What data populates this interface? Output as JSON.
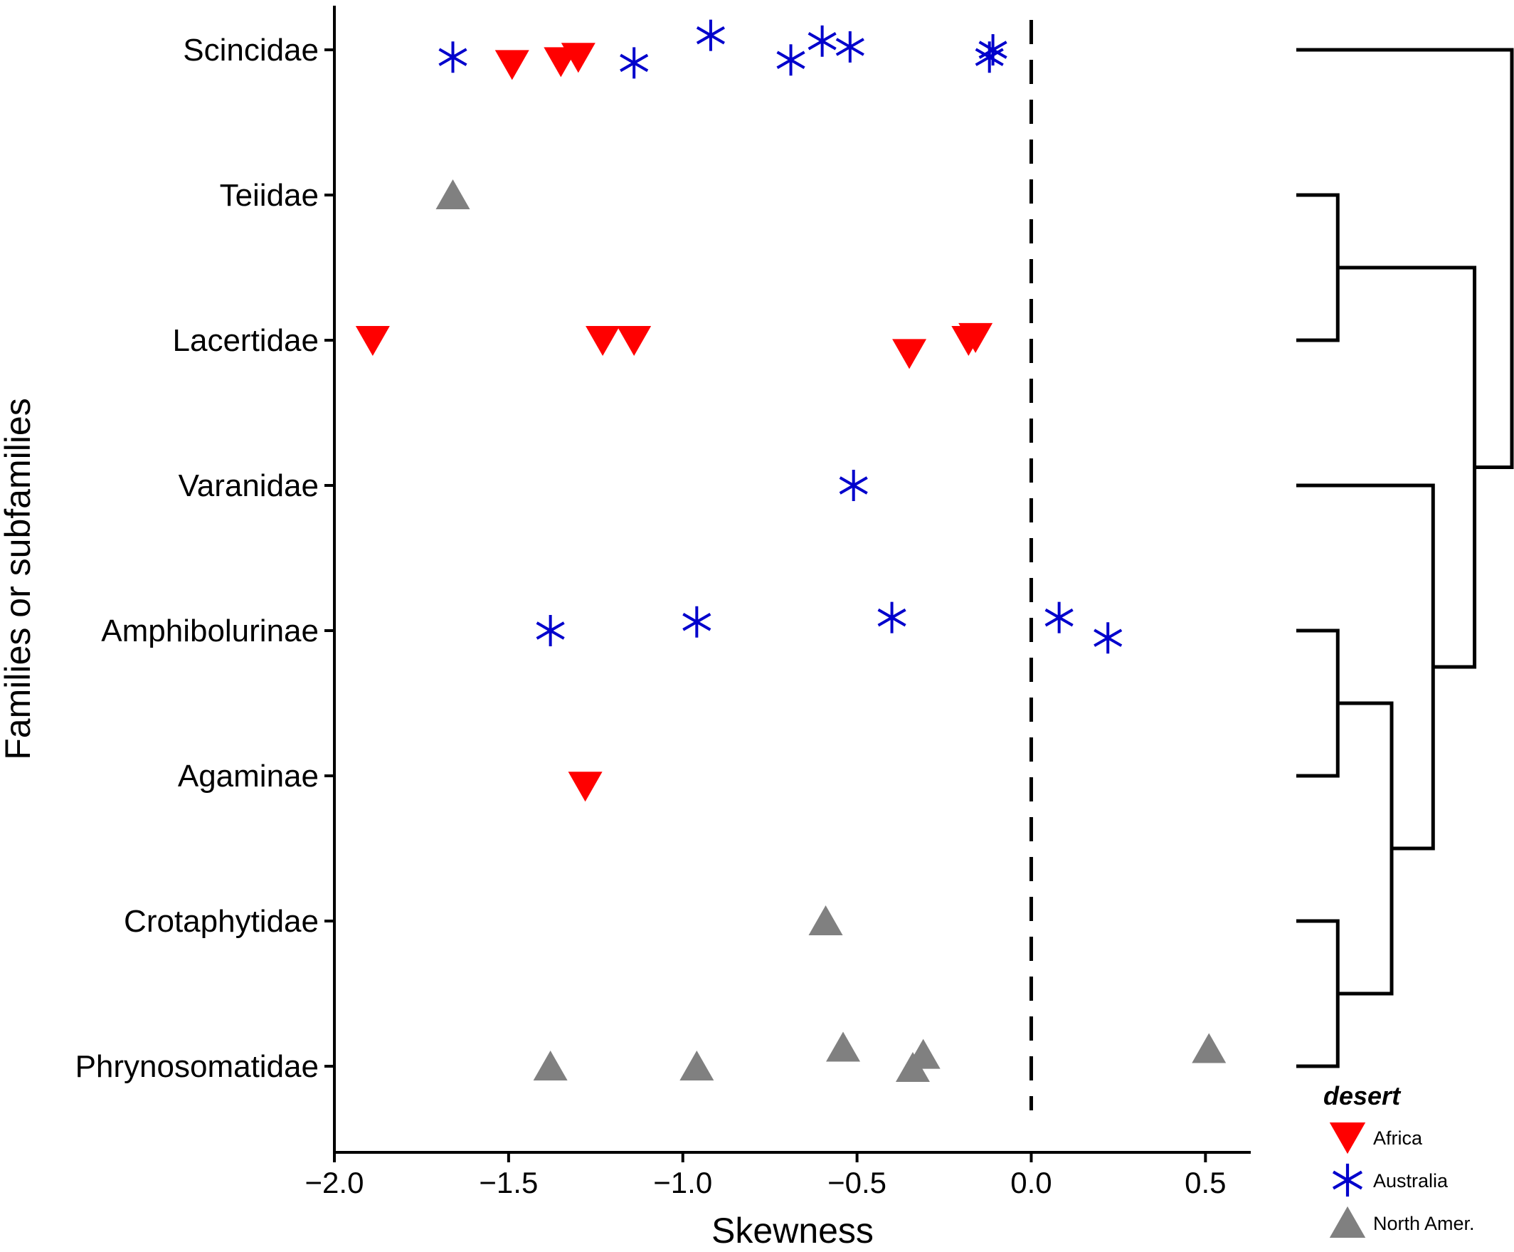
{
  "chart_data": {
    "type": "scatter",
    "xlabel": "Skewness",
    "ylabel": "Families or subfamilies",
    "xlim": [
      -2.0,
      0.63
    ],
    "x_ticks": [
      "−2.0",
      "−1.5",
      "−1.0",
      "−0.5",
      "0.0",
      "0.5"
    ],
    "x_tick_values": [
      -2.0,
      -1.5,
      -1.0,
      -0.5,
      0.0,
      0.5
    ],
    "categories": [
      "Scincidae",
      "Teiidae",
      "Lacertidae",
      "Varanidae",
      "Amphibolurinae",
      "Agaminae",
      "Crotaphytidae",
      "Phrynosomatidae"
    ],
    "reference_line": {
      "x": 0.0,
      "style": "dashed"
    },
    "legend": {
      "title": "desert",
      "position": "bottom-right"
    },
    "series": [
      {
        "name": "Africa",
        "marker": "triangle-down",
        "color": "#ff0000",
        "points": [
          {
            "category": "Scincidae",
            "x": -1.49,
            "jitter": -0.1
          },
          {
            "category": "Scincidae",
            "x": -1.35,
            "jitter": -0.08
          },
          {
            "category": "Scincidae",
            "x": -1.3,
            "jitter": -0.05
          },
          {
            "category": "Lacertidae",
            "x": -1.89,
            "jitter": 0.0
          },
          {
            "category": "Lacertidae",
            "x": -1.23,
            "jitter": 0.0
          },
          {
            "category": "Lacertidae",
            "x": -1.14,
            "jitter": 0.0
          },
          {
            "category": "Lacertidae",
            "x": -0.35,
            "jitter": -0.09
          },
          {
            "category": "Lacertidae",
            "x": -0.18,
            "jitter": 0.0
          },
          {
            "category": "Lacertidae",
            "x": -0.16,
            "jitter": 0.02
          },
          {
            "category": "Agaminae",
            "x": -1.28,
            "jitter": -0.07
          }
        ]
      },
      {
        "name": "Australia",
        "marker": "asterisk",
        "color": "#0000cc",
        "points": [
          {
            "category": "Scincidae",
            "x": -1.66,
            "jitter": -0.05
          },
          {
            "category": "Scincidae",
            "x": -1.14,
            "jitter": -0.09
          },
          {
            "category": "Scincidae",
            "x": -0.92,
            "jitter": 0.1
          },
          {
            "category": "Scincidae",
            "x": -0.69,
            "jitter": -0.07
          },
          {
            "category": "Scincidae",
            "x": -0.6,
            "jitter": 0.06
          },
          {
            "category": "Scincidae",
            "x": -0.52,
            "jitter": 0.02
          },
          {
            "category": "Scincidae",
            "x": -0.11,
            "jitter": 0.0
          },
          {
            "category": "Scincidae",
            "x": -0.12,
            "jitter": -0.05
          },
          {
            "category": "Varanidae",
            "x": -0.51,
            "jitter": 0.0
          },
          {
            "category": "Amphibolurinae",
            "x": -1.38,
            "jitter": 0.0
          },
          {
            "category": "Amphibolurinae",
            "x": -0.96,
            "jitter": 0.06
          },
          {
            "category": "Amphibolurinae",
            "x": -0.4,
            "jitter": 0.09
          },
          {
            "category": "Amphibolurinae",
            "x": 0.08,
            "jitter": 0.09
          },
          {
            "category": "Amphibolurinae",
            "x": 0.22,
            "jitter": -0.05
          }
        ]
      },
      {
        "name": "North Amer.",
        "marker": "triangle-up",
        "color": "#808080",
        "points": [
          {
            "category": "Teiidae",
            "x": -1.66,
            "jitter": 0.0
          },
          {
            "category": "Crotaphytidae",
            "x": -0.59,
            "jitter": 0.0
          },
          {
            "category": "Phrynosomatidae",
            "x": -1.38,
            "jitter": 0.0
          },
          {
            "category": "Phrynosomatidae",
            "x": -0.96,
            "jitter": 0.0
          },
          {
            "category": "Phrynosomatidae",
            "x": -0.54,
            "jitter": 0.13
          },
          {
            "category": "Phrynosomatidae",
            "x": -0.31,
            "jitter": 0.08
          },
          {
            "category": "Phrynosomatidae",
            "x": -0.34,
            "jitter": -0.01
          },
          {
            "category": "Phrynosomatidae",
            "x": 0.51,
            "jitter": 0.12
          }
        ]
      }
    ],
    "dendrogram": {
      "description_level": "tree topology",
      "merges": [
        {
          "id": "n1",
          "children": [
            "Teiidae",
            "Lacertidae"
          ],
          "height": 1
        },
        {
          "id": "n2",
          "children": [
            "Amphibolurinae",
            "Agaminae"
          ],
          "height": 1
        },
        {
          "id": "n3",
          "children": [
            "Crotaphytidae",
            "Phrynosomatidae"
          ],
          "height": 1
        },
        {
          "id": "n4",
          "children": [
            "n2",
            "n3"
          ],
          "height": 2.3
        },
        {
          "id": "n5",
          "children": [
            "Varanidae",
            "n4"
          ],
          "height": 3.3
        },
        {
          "id": "n6",
          "children": [
            "n1",
            "n5"
          ],
          "height": 4.3
        },
        {
          "id": "n7",
          "children": [
            "Scincidae",
            "n6"
          ],
          "height": 5.2
        }
      ],
      "max_height": 5.2
    }
  }
}
